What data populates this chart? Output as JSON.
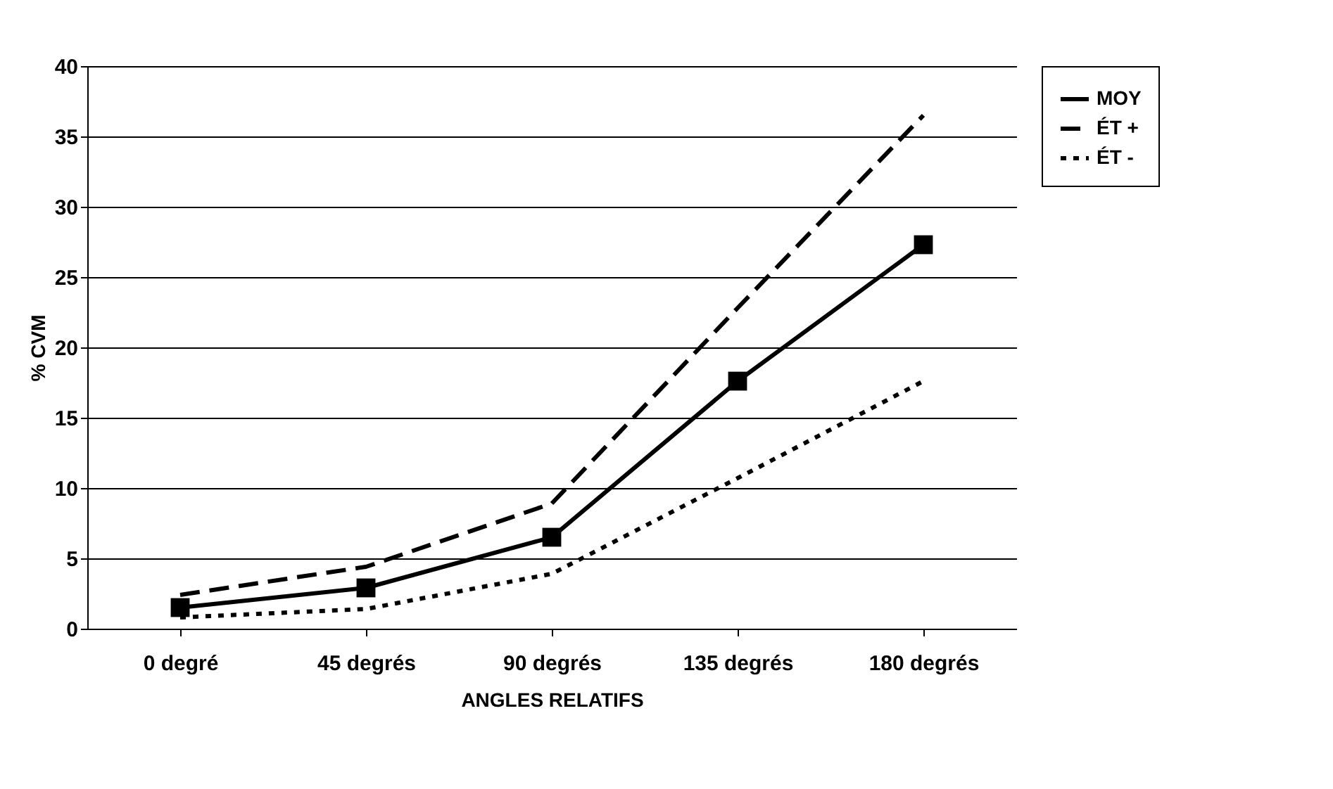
{
  "chart_data": {
    "type": "line",
    "xlabel": "ANGLES RELATIFS",
    "ylabel": "% CVM",
    "categories": [
      "0 degré",
      "45 degrés",
      "90 degrés",
      "135 degrés",
      "180 degrés"
    ],
    "series": [
      {
        "name": "MOY",
        "color": "#000000",
        "line_style": "solid",
        "marker": "square",
        "values": [
          1.5,
          2.9,
          6.5,
          17.6,
          27.3
        ]
      },
      {
        "name": "ÉT +",
        "color": "#000000",
        "line_style": "dashed",
        "marker": "none",
        "values": [
          2.4,
          4.4,
          8.9,
          22.8,
          36.5
        ]
      },
      {
        "name": "ÉT -",
        "color": "#000000",
        "line_style": "dotted",
        "marker": "none",
        "values": [
          0.8,
          1.4,
          3.9,
          10.7,
          17.6
        ]
      }
    ],
    "ylim": [
      0,
      40
    ],
    "yticks": [
      0,
      5,
      10,
      15,
      20,
      25,
      30,
      35,
      40
    ],
    "grid": "y",
    "legend": "right"
  }
}
